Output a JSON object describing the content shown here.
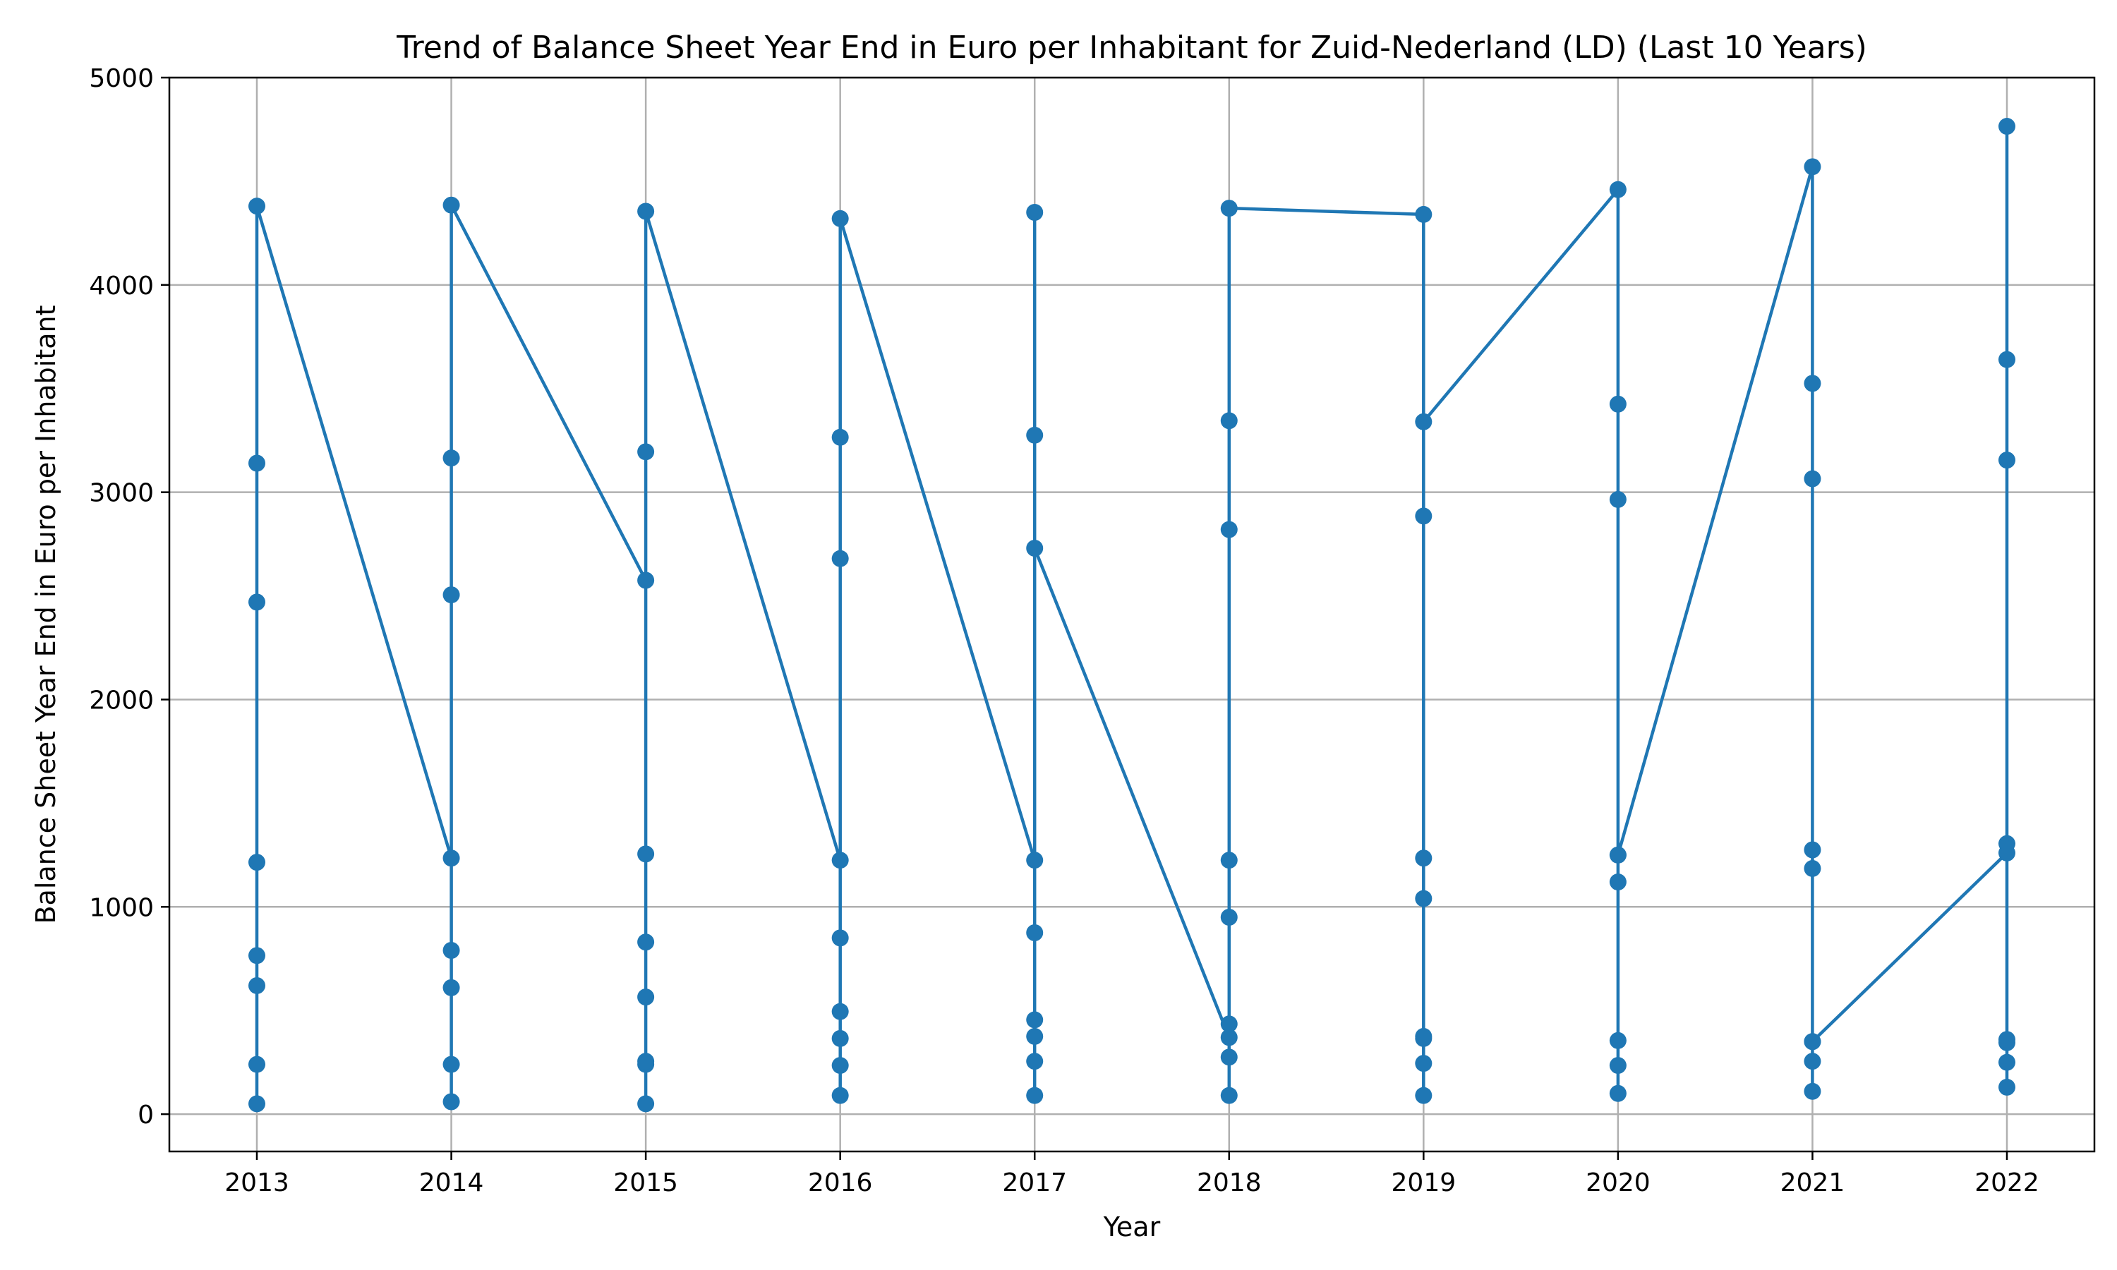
{
  "chart_data": {
    "type": "line",
    "title": "Trend of Balance Sheet Year End in Euro per Inhabitant for Zuid-Nederland (LD) (Last 10 Years)",
    "xlabel": "Year",
    "ylabel": "Balance Sheet Year End in Euro per Inhabitant",
    "x_ticks": [
      "2013",
      "2014",
      "2015",
      "2016",
      "2017",
      "2018",
      "2019",
      "2020",
      "2021",
      "2022"
    ],
    "y_ticks": [
      0,
      1000,
      2000,
      3000,
      4000,
      5000
    ],
    "xlim": [
      2012.55,
      2022.45
    ],
    "ylim": [
      -180,
      5000
    ],
    "grid": true,
    "color": "#1f77b4",
    "series": [
      {
        "x": [
          2013,
          2013,
          2013,
          2013,
          2013,
          2013,
          2013,
          2013,
          2014,
          2014,
          2014,
          2014,
          2014,
          2014,
          2014,
          2014,
          2015,
          2015,
          2015,
          2015,
          2015,
          2015,
          2015,
          2015,
          2015,
          2016,
          2016,
          2016,
          2016,
          2016,
          2016,
          2016,
          2016,
          2016,
          2017,
          2017,
          2017,
          2017,
          2017,
          2017,
          2017,
          2017,
          2017,
          2018,
          2018,
          2018,
          2018,
          2018,
          2018,
          2018,
          2018,
          2018,
          2019,
          2019,
          2019,
          2019,
          2019,
          2019,
          2019,
          2019,
          2019,
          2020,
          2020,
          2020,
          2020,
          2020,
          2020,
          2020,
          2020,
          2020,
          2021,
          2021,
          2021,
          2021,
          2021,
          2021,
          2021,
          2021,
          2021,
          2022,
          2022,
          2022,
          2022,
          2022,
          2022,
          2022,
          2022,
          2022
        ],
        "y": [
          240,
          50,
          620,
          765,
          1215,
          2470,
          3140,
          4380,
          1235,
          60,
          240,
          610,
          790,
          2505,
          3165,
          4385,
          2575,
          50,
          240,
          255,
          565,
          830,
          1255,
          3195,
          4355,
          1225,
          90,
          235,
          365,
          495,
          850,
          2680,
          3265,
          4320,
          1225,
          90,
          255,
          375,
          455,
          875,
          3275,
          4350,
          2730,
          370,
          90,
          275,
          435,
          950,
          1225,
          2820,
          3345,
          4370,
          4340,
          90,
          245,
          365,
          375,
          1040,
          1235,
          2885,
          3340,
          4460,
          100,
          235,
          355,
          1120,
          1250,
          2965,
          3425,
          1250,
          4570,
          110,
          255,
          350,
          1185,
          1275,
          3065,
          3525,
          350,
          1260,
          130,
          250,
          345,
          360,
          1305,
          3155,
          3640,
          4765
        ]
      }
    ]
  }
}
